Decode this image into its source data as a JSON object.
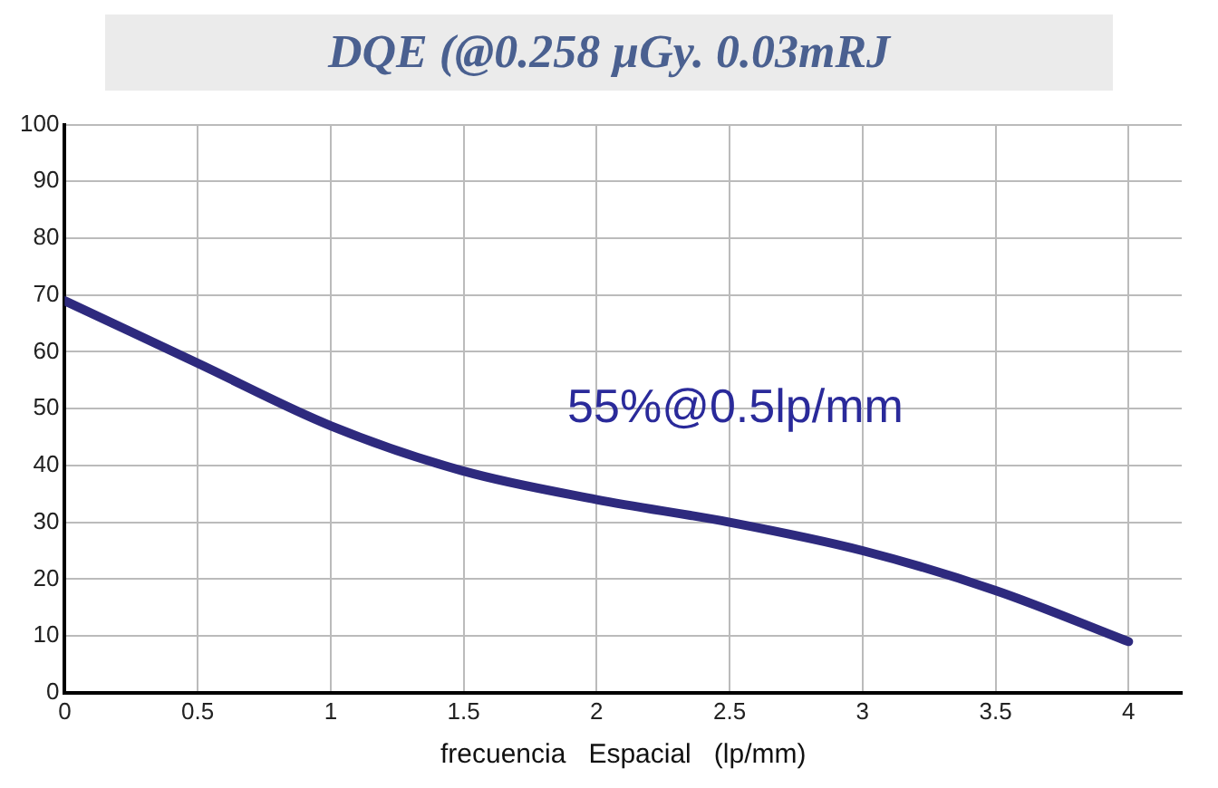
{
  "chart_data": {
    "type": "line",
    "title": "DQE (@0.258 µGy. 0.03mRJ",
    "xlabel": "frecuencia   Espacial   (lp/mm)",
    "x": [
      0,
      0.5,
      1,
      1.5,
      2,
      2.5,
      3,
      3.5,
      4
    ],
    "series": [
      {
        "color": "#2e2a7e",
        "values": [
          69,
          58,
          47,
          39,
          34,
          30,
          25,
          18,
          9
        ]
      }
    ],
    "annotations": [
      "55%@0.5lp/mm"
    ],
    "xlim": [
      0,
      4.2
    ],
    "xticks": [
      0,
      0.5,
      1,
      1.5,
      2,
      2.5,
      3,
      3.5,
      4
    ],
    "ylim": [
      0,
      100
    ],
    "yticks": [
      0,
      10,
      20,
      30,
      40,
      50,
      60,
      70,
      80,
      90,
      100
    ],
    "grid": true,
    "legend": false,
    "marker": "none",
    "line_style": "solid"
  }
}
